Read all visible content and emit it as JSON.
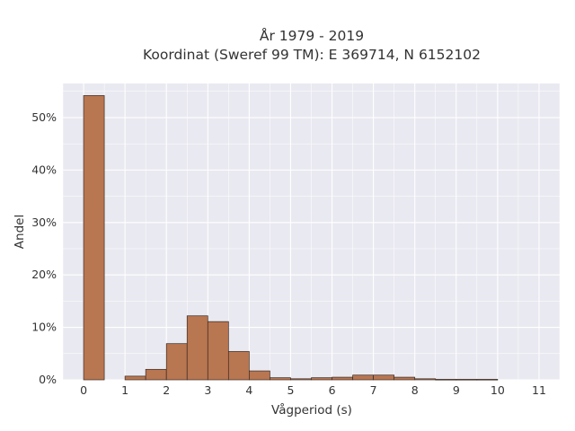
{
  "chart_data": {
    "type": "bar",
    "title_line1": "År 1979 - 2019",
    "title_line2": "Koordinat (Sweref 99 TM): E 369714, N 6152102",
    "xlabel": "Vågperiod (s)",
    "ylabel": "Andel",
    "bin_width": 0.5,
    "xlim": [
      -0.5,
      11.5
    ],
    "ylim": [
      0,
      0.565
    ],
    "x_ticks": [
      0,
      1,
      2,
      3,
      4,
      5,
      6,
      7,
      8,
      9,
      10,
      11
    ],
    "y_ticks": [
      0,
      0.1,
      0.2,
      0.3,
      0.4,
      0.5
    ],
    "y_tick_labels": [
      "0%",
      "10%",
      "20%",
      "30%",
      "40%",
      "50%"
    ],
    "x_tick_labels": [
      "0",
      "1",
      "2",
      "3",
      "4",
      "5",
      "6",
      "7",
      "8",
      "9",
      "10",
      "11"
    ],
    "grid": true,
    "colors": {
      "bar_fill": "#b87651",
      "bar_stroke": "#3a2a22",
      "plot_background": "#e9e9f1",
      "grid": "#ffffff"
    },
    "bins": [
      {
        "x0": 0.0,
        "x1": 0.5,
        "value": 0.542
      },
      {
        "x0": 0.5,
        "x1": 1.0,
        "value": 0.0
      },
      {
        "x0": 1.0,
        "x1": 1.5,
        "value": 0.007
      },
      {
        "x0": 1.5,
        "x1": 2.0,
        "value": 0.02
      },
      {
        "x0": 2.0,
        "x1": 2.5,
        "value": 0.069
      },
      {
        "x0": 2.5,
        "x1": 3.0,
        "value": 0.122
      },
      {
        "x0": 3.0,
        "x1": 3.5,
        "value": 0.111
      },
      {
        "x0": 3.5,
        "x1": 4.0,
        "value": 0.054
      },
      {
        "x0": 4.0,
        "x1": 4.5,
        "value": 0.017
      },
      {
        "x0": 4.5,
        "x1": 5.0,
        "value": 0.004
      },
      {
        "x0": 5.0,
        "x1": 5.5,
        "value": 0.002
      },
      {
        "x0": 5.5,
        "x1": 6.0,
        "value": 0.004
      },
      {
        "x0": 6.0,
        "x1": 6.5,
        "value": 0.005
      },
      {
        "x0": 6.5,
        "x1": 7.0,
        "value": 0.009
      },
      {
        "x0": 7.0,
        "x1": 7.5,
        "value": 0.009
      },
      {
        "x0": 7.5,
        "x1": 8.0,
        "value": 0.005
      },
      {
        "x0": 8.0,
        "x1": 8.5,
        "value": 0.002
      },
      {
        "x0": 8.5,
        "x1": 9.0,
        "value": 0.001
      },
      {
        "x0": 9.0,
        "x1": 9.5,
        "value": 0.001
      },
      {
        "x0": 9.5,
        "x1": 10.0,
        "value": 0.001
      }
    ]
  }
}
